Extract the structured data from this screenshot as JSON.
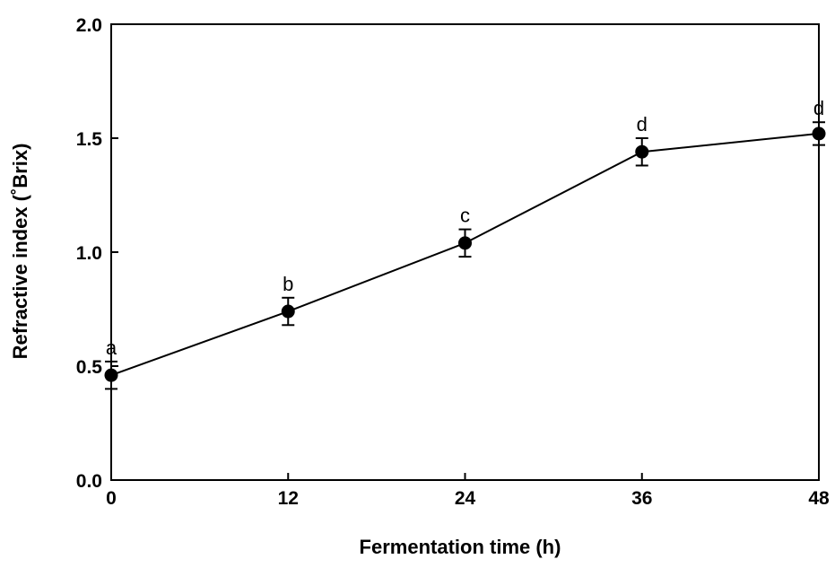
{
  "chart_data": {
    "type": "line",
    "title": "",
    "xlabel": "Fermentation time (h)",
    "ylabel": "Refractive index (˚Brix)",
    "xlim": [
      0,
      48
    ],
    "ylim": [
      0,
      2.0
    ],
    "x_ticks": [
      "0",
      "12",
      "24",
      "36",
      "48"
    ],
    "y_ticks": [
      "0.0",
      "0.5",
      "1.0",
      "1.5",
      "2.0"
    ],
    "grid": false,
    "legend": "none",
    "series": [
      {
        "x": [
          0,
          12,
          24,
          36,
          48
        ],
        "y": [
          0.46,
          0.74,
          1.04,
          1.44,
          1.52
        ],
        "error": [
          0.06,
          0.06,
          0.06,
          0.06,
          0.05
        ],
        "labels": [
          "a",
          "b",
          "c",
          "d",
          "d"
        ]
      }
    ],
    "colors": {
      "line": "#000000",
      "marker": "#000000"
    }
  }
}
